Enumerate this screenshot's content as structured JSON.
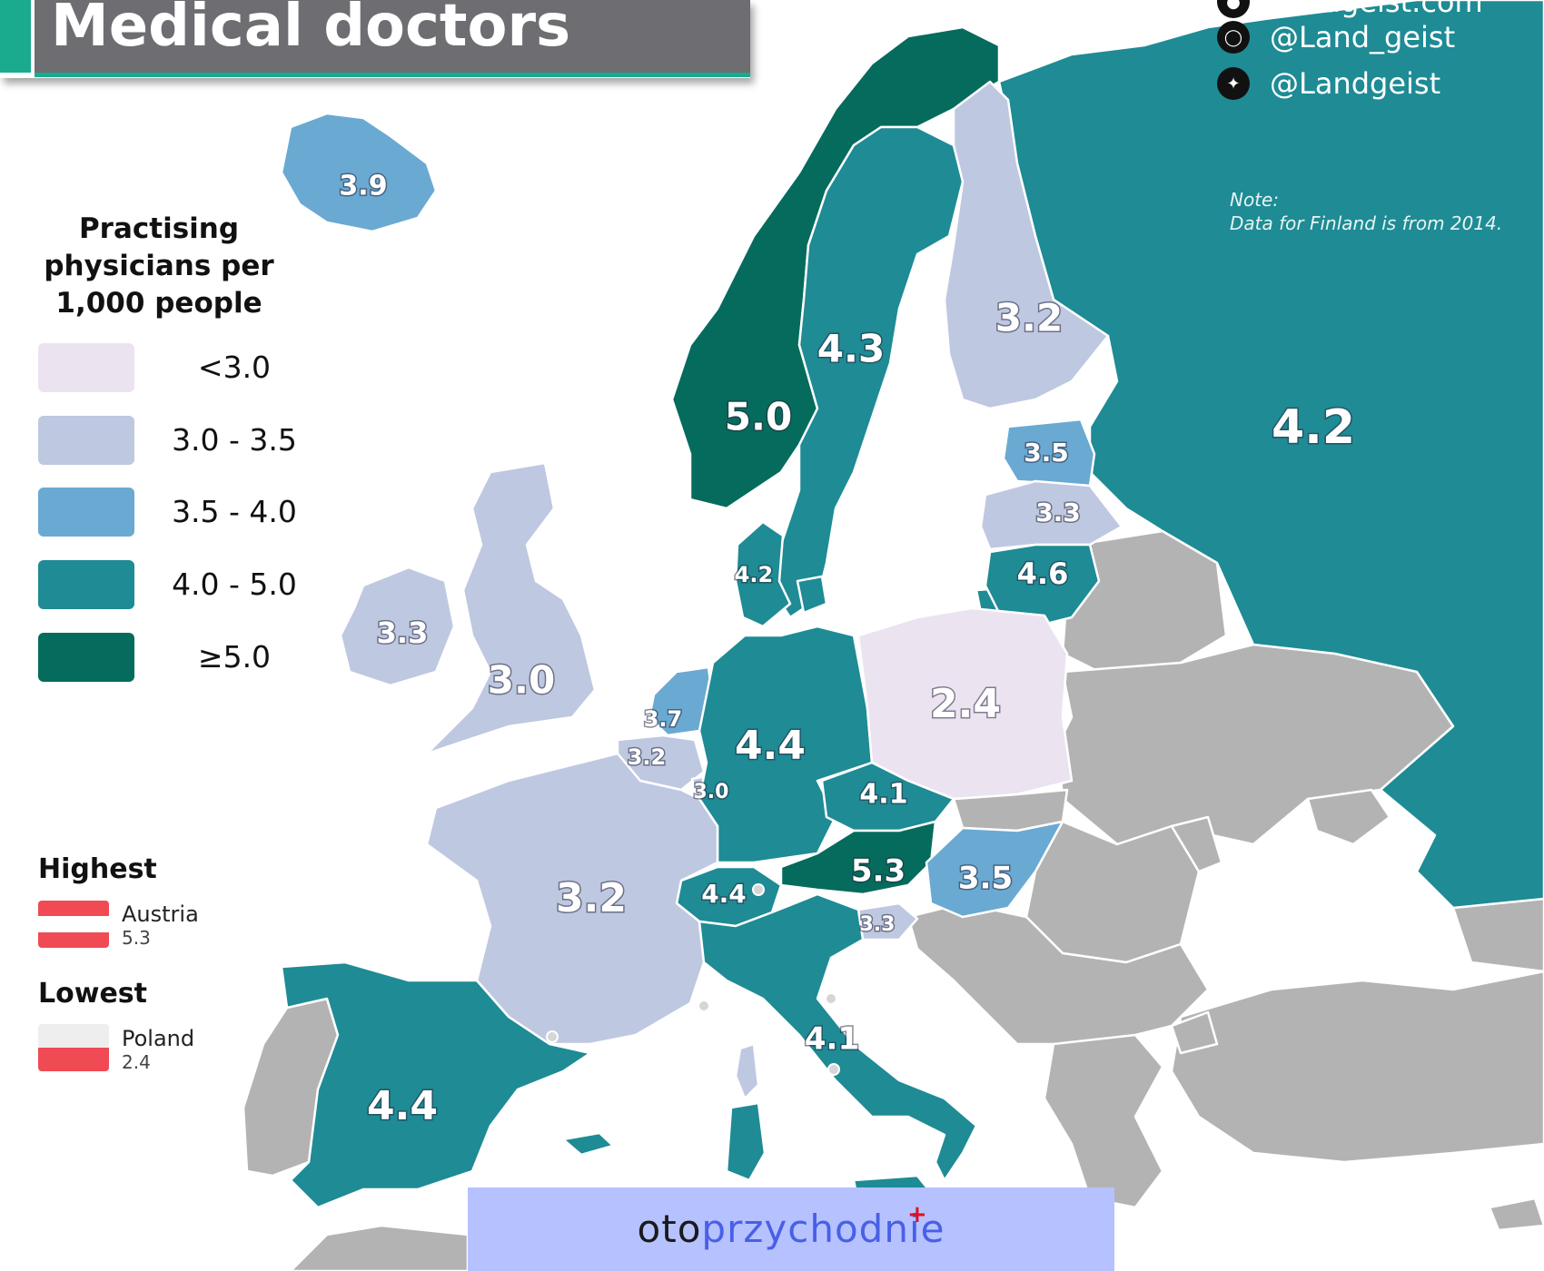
{
  "title": "Medical doctors",
  "social": {
    "website": "Landgeist.com",
    "instagram": "@Land_geist",
    "twitter": "@Landgeist"
  },
  "note": {
    "heading": "Note:",
    "text": "Data for Finland is from 2014."
  },
  "legend": {
    "title": "Practising physicians per 1,000 people",
    "title_lines": [
      "Practising",
      "physicians per",
      "1,000 people"
    ],
    "items": [
      {
        "label": "<3.0",
        "color": "#ece3f1"
      },
      {
        "label": "3.0 - 3.5",
        "color": "#bfc8e1"
      },
      {
        "label": "3.5 - 4.0",
        "color": "#6aa9d2"
      },
      {
        "label": "4.0 - 5.0",
        "color": "#1e8b95"
      },
      {
        "label": "≥5.0",
        "color": "#056b5d"
      }
    ],
    "no_data_color": "#b3b3b3"
  },
  "highest": {
    "heading": "Highest",
    "country": "Austria",
    "value": "5.3"
  },
  "lowest": {
    "heading": "Lowest",
    "country": "Poland",
    "value": "2.4"
  },
  "values": {
    "iceland": "3.9",
    "norway": "5.0",
    "sweden": "4.3",
    "finland": "3.2",
    "russia": "4.2",
    "estonia": "3.5",
    "latvia": "3.3",
    "lithuania": "4.6",
    "denmark": "4.2",
    "ireland": "3.3",
    "uk": "3.0",
    "netherlands": "3.7",
    "belgium": "3.2",
    "luxembourg": "3.0",
    "germany": "4.4",
    "poland": "2.4",
    "czechia": "4.1",
    "austria": "5.3",
    "hungary": "3.5",
    "slovenia": "3.3",
    "switzerland": "4.4",
    "france": "3.2",
    "italy": "4.1",
    "spain": "4.4"
  },
  "banner": {
    "part1": "oto",
    "part2": "przychodnie"
  }
}
